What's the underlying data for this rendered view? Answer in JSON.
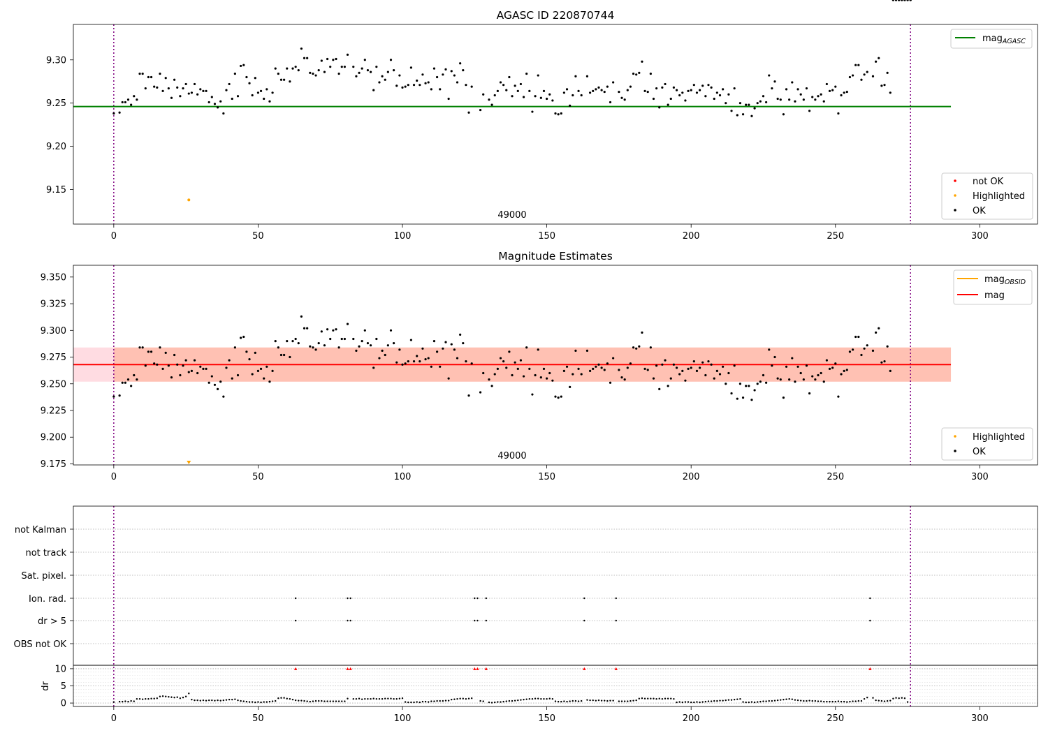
{
  "chart_data": [
    {
      "type": "scatter",
      "title": "AGASC ID 220870744",
      "xlim": [
        -14,
        320
      ],
      "ylim": [
        9.11,
        9.341
      ],
      "xticks": [
        0,
        50,
        100,
        150,
        200,
        250,
        300
      ],
      "yticks": [
        9.15,
        9.2,
        9.25,
        9.3
      ],
      "ytick_labels": [
        "9.15",
        "9.20",
        "9.25",
        "9.30"
      ],
      "vlines": [
        0,
        276
      ],
      "annotation": {
        "text": "49000",
        "x": 138
      },
      "hline": {
        "name": "mag_AGASC",
        "y": 9.246,
        "x0": -14,
        "x1": 290,
        "color": "#008000"
      },
      "legend_upper": [
        {
          "label": "mag",
          "sub": "AGASC",
          "color": "#008000"
        }
      ],
      "legend_lower": [
        {
          "label": "not OK",
          "color": "#ff0000"
        },
        {
          "label": "Highlighted",
          "color": "#ffa500"
        },
        {
          "label": "OK",
          "color": "#000000"
        }
      ],
      "highlighted_points": [
        {
          "x": 26,
          "y": 9.138
        }
      ]
    },
    {
      "type": "scatter",
      "title": "Magnitude Estimates",
      "xlim": [
        -14,
        320
      ],
      "ylim": [
        9.174,
        9.361
      ],
      "xticks": [
        0,
        50,
        100,
        150,
        200,
        250,
        300
      ],
      "yticks": [
        9.175,
        9.2,
        9.225,
        9.25,
        9.275,
        9.3,
        9.325,
        9.35
      ],
      "ytick_labels": [
        "9.175",
        "9.200",
        "9.225",
        "9.250",
        "9.275",
        "9.300",
        "9.325",
        "9.350"
      ],
      "vlines": [
        0,
        276
      ],
      "annotation": {
        "text": "49000",
        "x": 138
      },
      "mag": {
        "y": 9.268,
        "x0": -14,
        "x1": 290,
        "color": "#ff0000"
      },
      "mag_band": {
        "y0": 9.252,
        "y1": 9.284,
        "color": "#ffc0cb"
      },
      "mag_obsid_band": {
        "y0": 9.252,
        "y1": 9.284,
        "x0": 0,
        "x1": 290,
        "color": "#ffa07a"
      },
      "legend_upper": [
        {
          "label": "mag",
          "sub": "OBSID",
          "color": "#ffa500"
        },
        {
          "label": "mag",
          "sub": "",
          "color": "#ff0000"
        }
      ],
      "legend_lower": [
        {
          "label": "Highlighted",
          "color": "#ffa500"
        },
        {
          "label": "OK",
          "color": "#000000"
        }
      ],
      "highlighted_points": [
        {
          "x": 26,
          "y": 9.176
        }
      ]
    },
    {
      "type": "scatter",
      "title": "",
      "xlim": [
        -14,
        320
      ],
      "xticks": [
        0,
        50,
        100,
        150,
        200,
        250,
        300
      ],
      "vlines": [
        0,
        276
      ],
      "flag_labels": [
        "not Kalman",
        "not track",
        "Sat. pixel.",
        "Ion. rad.",
        "dr > 5",
        "OBS not OK"
      ],
      "flag_points": {
        "Ion. rad.": [
          63,
          81,
          82,
          125,
          126,
          129,
          163,
          174,
          262
        ],
        "dr > 5": [
          63,
          81,
          82,
          125,
          126,
          129,
          163,
          174,
          262
        ]
      },
      "dr_label": "dr",
      "dr_ylim": [
        -1,
        11
      ],
      "dr_yticks": [
        0,
        5,
        10
      ],
      "dr_outliers_x": [
        63,
        81,
        82,
        125,
        126,
        129,
        163,
        174,
        262
      ],
      "dr_outlier_value": 10
    }
  ],
  "observations": {
    "x": [
      0,
      2,
      3,
      4,
      5,
      6,
      7,
      8,
      9,
      10,
      11,
      12,
      13,
      14,
      15,
      16,
      17,
      18,
      19,
      20,
      21,
      22,
      23,
      24,
      25,
      26,
      27,
      28,
      29,
      30,
      31,
      32,
      33,
      34,
      35,
      36,
      37,
      38,
      39,
      40,
      41,
      42,
      43,
      44,
      45,
      46,
      47,
      48,
      49,
      50,
      51,
      52,
      53,
      54,
      55,
      56,
      57,
      58,
      59,
      60,
      61,
      62,
      63,
      64,
      65,
      66,
      67,
      68,
      69,
      70,
      71,
      72,
      73,
      74,
      75,
      76,
      77,
      78,
      79,
      80,
      81,
      83,
      84,
      85,
      86,
      87,
      88,
      89,
      90,
      91,
      92,
      93,
      94,
      95,
      96,
      97,
      98,
      99,
      100,
      101,
      102,
      103,
      104,
      105,
      106,
      107,
      108,
      109,
      110,
      111,
      112,
      113,
      114,
      115,
      116,
      117,
      118,
      119,
      120,
      121,
      122,
      123,
      124,
      127,
      128,
      130,
      131,
      132,
      133,
      134,
      135,
      136,
      137,
      138,
      139,
      140,
      141,
      142,
      143,
      144,
      145,
      146,
      147,
      148,
      149,
      150,
      151,
      152,
      153,
      154,
      155,
      156,
      157,
      158,
      159,
      160,
      161,
      162,
      164,
      165,
      166,
      167,
      168,
      169,
      170,
      171,
      172,
      173,
      175,
      176,
      177,
      178,
      179,
      180,
      181,
      182,
      183,
      184,
      185,
      186,
      187,
      188,
      189,
      190,
      191,
      192,
      193,
      194,
      195,
      196,
      197,
      198,
      199,
      200,
      201,
      202,
      203,
      204,
      205,
      206,
      207,
      208,
      209,
      210,
      211,
      212,
      213,
      214,
      215,
      216,
      217,
      218,
      219,
      220,
      221,
      222,
      223,
      224,
      225,
      226,
      227,
      228,
      229,
      230,
      231,
      232,
      233,
      234,
      235,
      236,
      237,
      238,
      239,
      240,
      241,
      242,
      243,
      244,
      245,
      246,
      247,
      248,
      249,
      250,
      251,
      252,
      253,
      254,
      255,
      256,
      257,
      258,
      259,
      260,
      261,
      263,
      264,
      265,
      266,
      267,
      268,
      269,
      270,
      271,
      272,
      273,
      274,
      275,
      276
    ],
    "mag": [
      9.238,
      9.239,
      9.251,
      9.251,
      9.254,
      9.248,
      9.258,
      9.254,
      9.284,
      9.284,
      9.267,
      9.28,
      9.28,
      9.269,
      9.268,
      9.284,
      9.264,
      9.279,
      9.267,
      9.256,
      9.277,
      9.268,
      9.258,
      9.267,
      9.272,
      9.261,
      9.262,
      9.272,
      9.26,
      9.266,
      9.264,
      9.264,
      9.251,
      9.257,
      9.249,
      9.245,
      9.252,
      9.238,
      9.265,
      9.272,
      9.255,
      9.284,
      9.258,
      9.293,
      9.294,
      9.28,
      9.273,
      9.259,
      9.279,
      9.262,
      9.264,
      9.255,
      9.266,
      9.252,
      9.262,
      9.29,
      9.284,
      9.277,
      9.277,
      9.29,
      9.275,
      9.29,
      9.292,
      9.288,
      9.313,
      9.302,
      9.302,
      9.285,
      9.284,
      9.282,
      9.288,
      9.299,
      9.286,
      9.301,
      9.292,
      9.3,
      9.301,
      9.284,
      9.292,
      9.292,
      9.306,
      9.292,
      9.281,
      9.285,
      9.29,
      9.3,
      9.288,
      9.286,
      9.265,
      9.292,
      9.274,
      9.281,
      9.277,
      9.286,
      9.3,
      9.288,
      9.27,
      9.282,
      9.268,
      9.269,
      9.271,
      9.291,
      9.271,
      9.276,
      9.271,
      9.283,
      9.273,
      9.274,
      9.266,
      9.29,
      9.28,
      9.266,
      9.283,
      9.289,
      9.255,
      9.287,
      9.282,
      9.274,
      9.296,
      9.288,
      9.271,
      9.239,
      9.269,
      9.242,
      9.26,
      9.254,
      9.248,
      9.259,
      9.264,
      9.274,
      9.271,
      9.265,
      9.28,
      9.258,
      9.27,
      9.264,
      9.272,
      9.257,
      9.284,
      9.264,
      9.24,
      9.258,
      9.282,
      9.256,
      9.264,
      9.255,
      9.26,
      9.253,
      9.238,
      9.237,
      9.238,
      9.262,
      9.266,
      9.247,
      9.259,
      9.281,
      9.264,
      9.259,
      9.281,
      9.262,
      9.264,
      9.266,
      9.268,
      9.265,
      9.263,
      9.269,
      9.251,
      9.274,
      9.263,
      9.256,
      9.254,
      9.265,
      9.269,
      9.284,
      9.283,
      9.285,
      9.298,
      9.264,
      9.263,
      9.284,
      9.255,
      9.267,
      9.245,
      9.268,
      9.272,
      9.248,
      9.255,
      9.268,
      9.265,
      9.259,
      9.262,
      9.253,
      9.264,
      9.265,
      9.271,
      9.262,
      9.265,
      9.27,
      9.258,
      9.271,
      9.268,
      9.255,
      9.262,
      9.259,
      9.266,
      9.25,
      9.26,
      9.241,
      9.267,
      9.236,
      9.25,
      9.237,
      9.248,
      9.248,
      9.235,
      9.244,
      9.25,
      9.252,
      9.258,
      9.251,
      9.282,
      9.267,
      9.275,
      9.255,
      9.254,
      9.237,
      9.266,
      9.254,
      9.274,
      9.252,
      9.266,
      9.26,
      9.254,
      9.267,
      9.241,
      9.257,
      9.254,
      9.258,
      9.26,
      9.252,
      9.272,
      9.264,
      9.265,
      9.269,
      9.238,
      9.259,
      9.262,
      9.263,
      9.28,
      9.282,
      9.294,
      9.294,
      9.277,
      9.283,
      9.286,
      9.281,
      9.298,
      9.302,
      9.27,
      9.271,
      9.285,
      9.262
    ],
    "dr": [
      0.3,
      0.4,
      0.4,
      0.5,
      0.4,
      0.6,
      0.5,
      1.2,
      1.2,
      1.1,
      1.2,
      1.2,
      1.3,
      1.3,
      1.4,
      1.9,
      2.0,
      1.9,
      1.8,
      1.7,
      1.6,
      1.7,
      1.4,
      1.6,
      1.9,
      2.8,
      1.0,
      0.8,
      0.8,
      0.7,
      0.8,
      0.7,
      0.8,
      0.8,
      0.7,
      0.8,
      0.7,
      0.8,
      0.9,
      1.0,
      1.0,
      1.1,
      0.8,
      0.6,
      0.5,
      0.4,
      0.3,
      0.3,
      0.2,
      0.3,
      0.2,
      0.3,
      0.3,
      0.4,
      0.5,
      0.6,
      1.4,
      1.5,
      1.5,
      1.3,
      1.2,
      1.0,
      0.8,
      0.7,
      0.7,
      0.6,
      0.5,
      0.4,
      0.5,
      0.6,
      0.6,
      0.6,
      0.5,
      0.5,
      0.5,
      0.5,
      0.5,
      0.5,
      0.5,
      0.5,
      1.3,
      1.2,
      1.2,
      1.3,
      1.1,
      1.2,
      1.2,
      1.2,
      1.3,
      1.2,
      1.2,
      1.2,
      1.3,
      1.3,
      1.3,
      1.2,
      1.2,
      1.3,
      1.4,
      0.3,
      0.2,
      0.2,
      0.2,
      0.3,
      0.2,
      0.4,
      0.4,
      0.3,
      0.5,
      0.5,
      0.6,
      0.6,
      0.6,
      0.7,
      0.7,
      1.0,
      1.1,
      1.2,
      1.3,
      1.3,
      1.2,
      1.3,
      1.4,
      0.6,
      0.5,
      0.2,
      0.1,
      0.2,
      0.3,
      0.3,
      0.4,
      0.5,
      0.6,
      0.6,
      0.7,
      0.8,
      0.9,
      1.0,
      1.1,
      1.2,
      1.2,
      1.3,
      1.3,
      1.2,
      1.2,
      1.2,
      1.3,
      1.2,
      0.5,
      0.4,
      0.4,
      0.5,
      0.4,
      0.5,
      0.6,
      0.6,
      0.5,
      0.6,
      0.9,
      0.8,
      0.8,
      0.7,
      0.8,
      0.7,
      0.7,
      0.6,
      0.7,
      0.7,
      0.5,
      0.5,
      0.5,
      0.5,
      0.6,
      0.7,
      0.8,
      1.3,
      1.4,
      1.3,
      1.3,
      1.3,
      1.3,
      1.2,
      1.3,
      1.2,
      1.3,
      1.3,
      1.3,
      1.2,
      0.2,
      0.3,
      0.2,
      0.3,
      0.3,
      0.2,
      0.2,
      0.3,
      0.2,
      0.3,
      0.4,
      0.5,
      0.5,
      0.6,
      0.6,
      0.7,
      0.7,
      0.8,
      0.9,
      0.9,
      1.0,
      1.1,
      1.2,
      0.3,
      0.2,
      0.2,
      0.3,
      0.2,
      0.3,
      0.4,
      0.5,
      0.5,
      0.6,
      0.6,
      0.7,
      0.8,
      0.9,
      1.0,
      1.1,
      1.2,
      1.1,
      0.9,
      0.8,
      0.7,
      0.6,
      0.6,
      0.7,
      0.6,
      0.6,
      0.5,
      0.5,
      0.4,
      0.4,
      0.4,
      0.4,
      0.4,
      0.5,
      0.4,
      0.4,
      0.3,
      0.4,
      0.5,
      0.5,
      0.6,
      0.6,
      1.2,
      1.6,
      1.5,
      0.8,
      0.7,
      0.6,
      0.5,
      0.6,
      0.7,
      1.3,
      1.5,
      1.4,
      1.5,
      1.4,
      0.3
    ]
  }
}
